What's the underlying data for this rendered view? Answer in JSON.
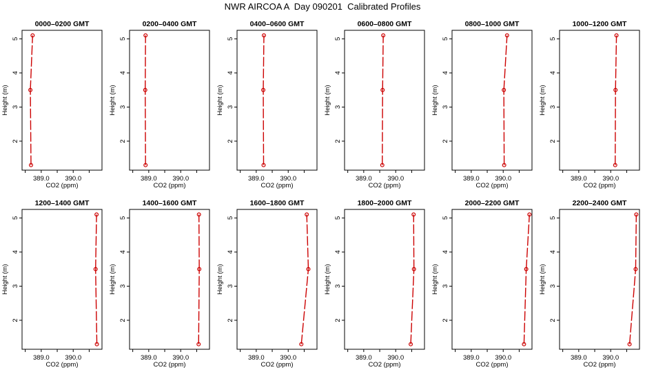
{
  "title": "NWR AIRCOA A  Day 090201  Calibrated Profiles",
  "colors": {
    "profile": "#cc0000",
    "axes": "#000000"
  },
  "chart_data": {
    "type": "line",
    "orientation": "profile",
    "xlabel": "CO2 (ppm)",
    "ylabel": "Height (m)",
    "xlim": [
      388.4,
      390.9
    ],
    "ylim": [
      1.15,
      5.25
    ],
    "xticks": [
      388.5,
      389.0,
      389.5,
      390.0,
      390.5
    ],
    "xtick_labels": [
      "",
      "389.0",
      "",
      "390.0",
      ""
    ],
    "yticks": [
      2,
      3,
      4,
      5
    ],
    "ytick_labels": [
      "2",
      "3",
      "4",
      "5"
    ],
    "heights": [
      1.3,
      3.5,
      5.1
    ],
    "panels": [
      {
        "title": "0000–0200 GMT",
        "values": [
          388.68,
          388.66,
          388.73
        ]
      },
      {
        "title": "0200–0400 GMT",
        "values": [
          388.9,
          388.89,
          388.9
        ]
      },
      {
        "title": "0400–0600 GMT",
        "values": [
          389.23,
          389.22,
          389.24
        ]
      },
      {
        "title": "0600–0800 GMT",
        "values": [
          389.58,
          389.59,
          389.61
        ]
      },
      {
        "title": "0800–1000 GMT",
        "values": [
          390.03,
          390.02,
          390.12
        ]
      },
      {
        "title": "1000–1200 GMT",
        "values": [
          390.14,
          390.15,
          390.18
        ]
      },
      {
        "title": "1200–1400 GMT",
        "values": [
          390.74,
          390.7,
          390.73
        ]
      },
      {
        "title": "1400–1600 GMT",
        "values": [
          390.56,
          390.58,
          390.57
        ]
      },
      {
        "title": "1600–1800 GMT",
        "values": [
          390.41,
          390.63,
          390.58
        ]
      },
      {
        "title": "1800–2000 GMT",
        "values": [
          390.47,
          390.57,
          390.56
        ]
      },
      {
        "title": "2000–2200 GMT",
        "values": [
          390.65,
          390.72,
          390.82
        ]
      },
      {
        "title": "2200–2400 GMT",
        "values": [
          390.59,
          390.78,
          390.8
        ]
      }
    ]
  }
}
